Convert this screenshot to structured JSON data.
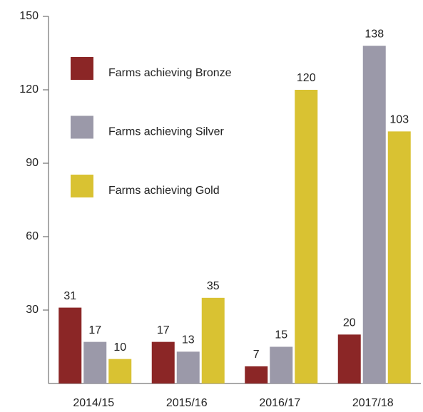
{
  "chart_data": {
    "type": "bar",
    "categories": [
      "2014/15",
      "2015/16",
      "2016/17",
      "2017/18"
    ],
    "series": [
      {
        "name": "Farms achieving Bronze",
        "color": "#8b2626",
        "values": [
          31,
          17,
          7,
          20
        ]
      },
      {
        "name": "Farms achieving Silver",
        "color": "#9b99a9",
        "values": [
          17,
          13,
          15,
          138
        ]
      },
      {
        "name": "Farms achieving Gold",
        "color": "#d9c232",
        "values": [
          10,
          35,
          120,
          103
        ]
      }
    ],
    "ylim": [
      0,
      150
    ],
    "yticks": [
      30,
      60,
      90,
      120,
      150
    ],
    "grid": false,
    "legend": "upper left"
  }
}
